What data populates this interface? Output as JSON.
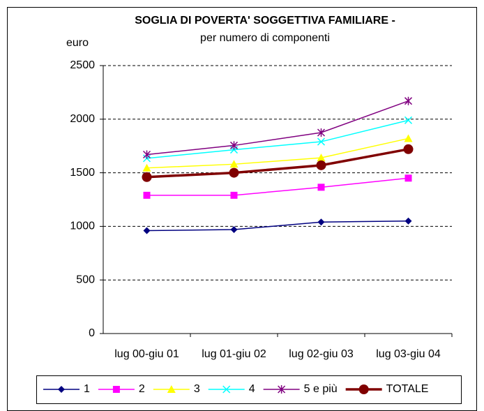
{
  "chart_data": {
    "type": "line",
    "title": "SOGLIA DI POVERTA' SOGGETTIVA FAMILIARE -",
    "subtitle": "per numero di componenti",
    "y_label": "euro",
    "categories": [
      "lug 00-giu 01",
      "lug 01-giu 02",
      "lug 02-giu 03",
      "lug 03-giu 04"
    ],
    "ylim": [
      0,
      2500
    ],
    "yticks": [
      0,
      500,
      1000,
      1500,
      2000,
      2500
    ],
    "grid": true,
    "legend": "bottom",
    "series": [
      {
        "name": "1",
        "color": "#000080",
        "marker": "diamond",
        "values": [
          960,
          970,
          1040,
          1050
        ]
      },
      {
        "name": "2",
        "color": "#ff00ff",
        "marker": "square",
        "values": [
          1290,
          1290,
          1365,
          1450
        ]
      },
      {
        "name": "3",
        "color": "#ffff00",
        "marker": "triangle",
        "values": [
          1545,
          1580,
          1640,
          1820
        ]
      },
      {
        "name": "4",
        "color": "#00ffff",
        "marker": "x",
        "values": [
          1635,
          1715,
          1790,
          1990
        ]
      },
      {
        "name": "5 e più",
        "color": "#800080",
        "marker": "star",
        "values": [
          1670,
          1755,
          1875,
          2170
        ]
      },
      {
        "name": "TOTALE",
        "color": "#800000",
        "marker": "circle",
        "values": [
          1460,
          1500,
          1570,
          1720
        ]
      }
    ]
  }
}
